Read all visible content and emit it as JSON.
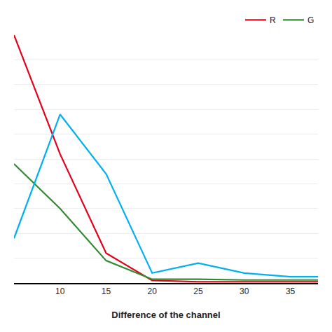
{
  "chart_data": {
    "type": "line",
    "x": [
      5,
      10,
      15,
      20,
      25,
      30,
      35,
      38
    ],
    "series": [
      {
        "name": "R",
        "color": "#e2001a",
        "values": [
          100,
          52,
          12,
          1,
          0.5,
          0.5,
          0.5,
          0.5
        ]
      },
      {
        "name": "G",
        "color": "#2e8b2e",
        "values": [
          48,
          30,
          9,
          1.5,
          1.5,
          1.2,
          1.2,
          1.2
        ]
      },
      {
        "color": "#00b0f0",
        "values": [
          18,
          68,
          44,
          4,
          8,
          4,
          2.5,
          2.5
        ]
      }
    ],
    "xlabel": "Difference of the channel",
    "xlim": [
      5,
      38
    ],
    "xticks": [
      10,
      15,
      20,
      25,
      30,
      35
    ],
    "ylim": [
      0,
      100
    ],
    "yticks": [
      0,
      10,
      20,
      30,
      40,
      50,
      60,
      70,
      80,
      90,
      100
    ],
    "grid": true,
    "legend": "upper right",
    "tick_labels": "x"
  }
}
